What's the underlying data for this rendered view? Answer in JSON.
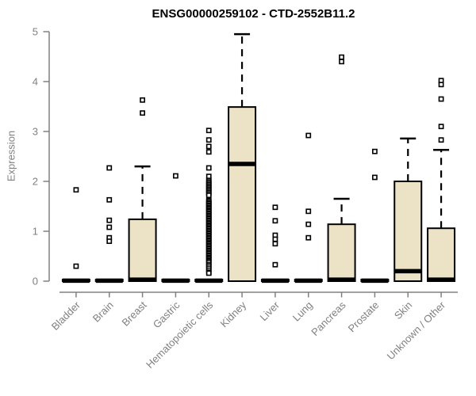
{
  "page": {
    "background": "#ffffff"
  },
  "chart_data": {
    "type": "boxplot",
    "title": "ENSG00000259102 - CTD-2552B11.2",
    "ylabel": "Expression",
    "xlabel": "",
    "ylim": [
      0,
      5
    ],
    "yticks": [
      0,
      1,
      2,
      3,
      4,
      5
    ],
    "grid": false,
    "legend": false,
    "axis_color": "#808080",
    "label_color": "#808080",
    "title_color": "#000000",
    "box_fill": "#ECE3C7",
    "box_stroke": "#000000",
    "categories": [
      "Bladder",
      "Brain",
      "Breast",
      "Gastric",
      "Hematopoietic cells",
      "Kidney",
      "Liver",
      "Lung",
      "Pancreas",
      "Prostate",
      "Skin",
      "Unknown / Other"
    ],
    "series": [
      {
        "category": "Bladder",
        "q1": 0,
        "median": 0.01,
        "q3": 0.03,
        "whisker_low": 0,
        "whisker_high": 0.03,
        "outliers": [
          1.83,
          0.3
        ]
      },
      {
        "category": "Brain",
        "q1": 0,
        "median": 0.01,
        "q3": 0.03,
        "whisker_low": 0,
        "whisker_high": 0.03,
        "outliers": [
          2.27,
          1.63,
          1.22,
          1.08,
          0.87,
          0.8
        ]
      },
      {
        "category": "Breast",
        "q1": 0,
        "median": 0.03,
        "q3": 1.24,
        "whisker_low": 0,
        "whisker_high": 2.3,
        "outliers": [
          3.63,
          3.37
        ]
      },
      {
        "category": "Gastric",
        "q1": 0,
        "median": 0.01,
        "q3": 0.03,
        "whisker_low": 0,
        "whisker_high": 0.03,
        "outliers": [
          2.11
        ]
      },
      {
        "category": "Hematopoietic cells",
        "q1": 0,
        "median": 0.01,
        "q3": 0.03,
        "whisker_low": 0,
        "whisker_high": 0.03,
        "outliers": [
          3.02,
          2.83,
          2.7,
          2.59,
          2.27,
          2.1,
          2.02,
          1.99,
          1.96,
          1.93,
          1.9,
          1.87,
          1.84,
          1.81,
          1.78,
          1.75,
          1.72,
          1.62,
          1.6,
          1.57,
          1.55,
          1.52,
          1.5,
          1.47,
          1.45,
          1.42,
          1.4,
          1.37,
          1.35,
          1.32,
          1.3,
          1.27,
          1.25,
          1.22,
          1.2,
          1.17,
          1.15,
          1.12,
          1.1,
          1.07,
          1.05,
          1.02,
          1.0,
          0.97,
          0.95,
          0.92,
          0.9,
          0.87,
          0.85,
          0.82,
          0.8,
          0.77,
          0.75,
          0.72,
          0.7,
          0.67,
          0.65,
          0.62,
          0.6,
          0.57,
          0.55,
          0.52,
          0.5,
          0.47,
          0.45,
          0.42,
          0.4,
          0.37,
          0.33,
          0.3,
          0.26,
          0.22,
          0.18,
          0.16
        ]
      },
      {
        "category": "Kidney",
        "q1": 0,
        "median": 2.35,
        "q3": 3.49,
        "whisker_low": 0,
        "whisker_high": 4.95,
        "outliers": []
      },
      {
        "category": "Liver",
        "q1": 0,
        "median": 0.01,
        "q3": 0.03,
        "whisker_low": 0,
        "whisker_high": 0.03,
        "outliers": [
          1.48,
          1.21,
          0.92,
          0.84,
          0.75,
          0.33
        ]
      },
      {
        "category": "Lung",
        "q1": 0,
        "median": 0.01,
        "q3": 0.03,
        "whisker_low": 0,
        "whisker_high": 0.03,
        "outliers": [
          2.92,
          1.4,
          1.14,
          0.87
        ]
      },
      {
        "category": "Pancreas",
        "q1": 0,
        "median": 0.03,
        "q3": 1.14,
        "whisker_low": 0,
        "whisker_high": 1.65,
        "outliers": [
          4.49,
          4.4
        ]
      },
      {
        "category": "Prostate",
        "q1": 0,
        "median": 0.01,
        "q3": 0.03,
        "whisker_low": 0,
        "whisker_high": 0.03,
        "outliers": [
          2.6,
          2.08
        ]
      },
      {
        "category": "Skin",
        "q1": 0,
        "median": 0.2,
        "q3": 2.0,
        "whisker_low": 0,
        "whisker_high": 2.86,
        "outliers": []
      },
      {
        "category": "Unknown / Other",
        "q1": 0,
        "median": 0.03,
        "q3": 1.06,
        "whisker_low": 0,
        "whisker_high": 2.63,
        "outliers": [
          4.02,
          3.94,
          3.65,
          3.1,
          2.83
        ]
      }
    ]
  }
}
